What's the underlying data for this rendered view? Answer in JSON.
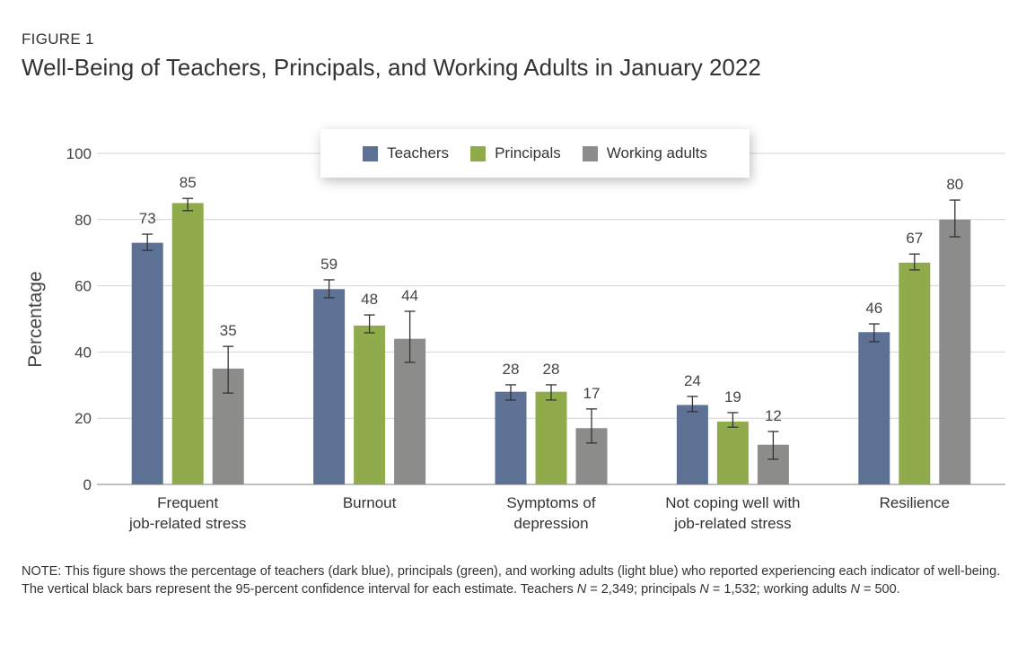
{
  "figure_label": "FIGURE 1",
  "title": "Well-Being of Teachers, Principals, and Working Adults in January 2022",
  "note": {
    "prefix": "NOTE: This figure shows the percentage of teachers (dark blue), principals (green), and working adults (light blue) who reported experiencing each indicator of well-being. The vertical black bars represent the 95-percent confidence interval for each estimate. Teachers ",
    "n1": "N",
    "t1": " = 2,349; principals ",
    "n2": "N",
    "t2": " = 1,532; working adults ",
    "n3": "N",
    "t3": " = 500."
  },
  "chart_data": {
    "type": "bar",
    "title": "Well-Being of Teachers, Principals, and Working Adults in January 2022",
    "xlabel": "",
    "ylabel": "Percentage",
    "ylim": [
      0,
      100
    ],
    "yticks": [
      0,
      20,
      40,
      60,
      80,
      100
    ],
    "grid": true,
    "legend_position": "top-center",
    "categories": [
      [
        "Frequent",
        "job-related stress"
      ],
      [
        "Burnout"
      ],
      [
        "Symptoms of",
        "depression"
      ],
      [
        "Not coping well with",
        "job-related stress"
      ],
      [
        "Resilience"
      ]
    ],
    "series": [
      {
        "name": "Teachers",
        "color": "#5c7194",
        "values": [
          73,
          59,
          28,
          24,
          46
        ],
        "ci": [
          [
            70.7,
            75.6
          ],
          [
            56.4,
            61.8
          ],
          [
            25.5,
            30.1
          ],
          [
            22.0,
            26.6
          ],
          [
            43.1,
            48.5
          ]
        ]
      },
      {
        "name": "Principals",
        "color": "#90ab4b",
        "values": [
          85,
          48,
          28,
          19,
          67
        ],
        "ci": [
          [
            82.7,
            86.4
          ],
          [
            45.8,
            51.2
          ],
          [
            25.5,
            30.1
          ],
          [
            17.3,
            21.7
          ],
          [
            64.8,
            69.6
          ]
        ]
      },
      {
        "name": "Working adults",
        "color": "#8c8c8a",
        "values": [
          35,
          44,
          17,
          12,
          80
        ],
        "ci": [
          [
            27.6,
            41.7
          ],
          [
            36.9,
            52.3
          ],
          [
            12.5,
            22.8
          ],
          [
            7.6,
            16.0
          ],
          [
            74.8,
            85.9
          ]
        ]
      }
    ]
  }
}
